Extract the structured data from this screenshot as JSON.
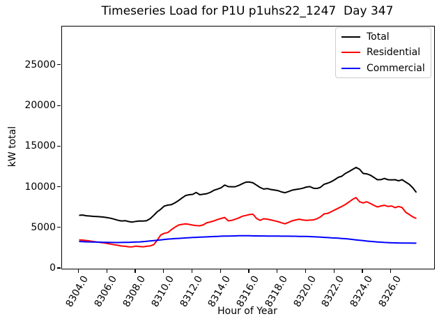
{
  "chart_data": {
    "type": "line",
    "title": "Timeseries Load for P1U p1uhs22_1247  Day 347",
    "xlabel": "Hour of Year",
    "ylabel": "kW total",
    "grid": false,
    "legend_position": "upper right",
    "x_start": 8304.0,
    "x_step": 0.25,
    "xlim": [
      8302.8,
      8329.0
    ],
    "ylim": [
      0,
      29800
    ],
    "xticks": {
      "values": [
        8304,
        8306,
        8308,
        8310,
        8312,
        8314,
        8316,
        8318,
        8320,
        8322,
        8324,
        8326
      ],
      "labels": [
        "8304.0",
        "8306.0",
        "8308.0",
        "8310.0",
        "8312.0",
        "8314.0",
        "8316.0",
        "8318.0",
        "8320.0",
        "8322.0",
        "8324.0",
        "8326.0"
      ]
    },
    "yticks": {
      "values": [
        0,
        5000,
        10000,
        15000,
        20000,
        25000
      ],
      "labels": [
        "0",
        "5000",
        "10000",
        "15000",
        "20000",
        "25000"
      ]
    },
    "series": [
      {
        "name": "Total",
        "color": "#000000",
        "values": [
          6570,
          6600,
          6520,
          6480,
          6440,
          6420,
          6390,
          6350,
          6280,
          6200,
          6080,
          5950,
          5870,
          5910,
          5800,
          5740,
          5820,
          5870,
          5860,
          5900,
          6150,
          6550,
          7000,
          7320,
          7700,
          7820,
          7880,
          8100,
          8380,
          8700,
          9000,
          9100,
          9150,
          9380,
          9100,
          9160,
          9230,
          9400,
          9650,
          9800,
          9950,
          10300,
          10100,
          10080,
          10090,
          10250,
          10460,
          10650,
          10670,
          10560,
          10280,
          10000,
          9800,
          9860,
          9750,
          9680,
          9610,
          9450,
          9350,
          9500,
          9660,
          9750,
          9810,
          9900,
          10050,
          10100,
          9900,
          9880,
          10010,
          10380,
          10520,
          10700,
          10950,
          11240,
          11380,
          11720,
          11950,
          12200,
          12465,
          12240,
          11720,
          11670,
          11520,
          11240,
          10950,
          10960,
          11100,
          10950,
          10930,
          10950,
          10810,
          10950,
          10660,
          10380,
          9950,
          9380
        ]
      },
      {
        "name": "Residential",
        "color": "#ff0000",
        "values": [
          3550,
          3520,
          3470,
          3420,
          3350,
          3280,
          3230,
          3180,
          3100,
          3020,
          2940,
          2880,
          2790,
          2760,
          2700,
          2690,
          2770,
          2730,
          2700,
          2760,
          2800,
          2950,
          3500,
          4150,
          4350,
          4450,
          4800,
          5100,
          5370,
          5450,
          5520,
          5450,
          5370,
          5300,
          5280,
          5400,
          5660,
          5750,
          5890,
          6050,
          6180,
          6300,
          5890,
          5950,
          6090,
          6250,
          6460,
          6550,
          6660,
          6700,
          6180,
          5950,
          6150,
          6100,
          6005,
          5900,
          5800,
          5650,
          5520,
          5700,
          5890,
          6000,
          6090,
          6000,
          5945,
          5980,
          6005,
          6150,
          6375,
          6745,
          6805,
          7000,
          7230,
          7450,
          7660,
          7900,
          8200,
          8520,
          8750,
          8240,
          8090,
          8240,
          8030,
          7805,
          7600,
          7720,
          7805,
          7660,
          7720,
          7515,
          7660,
          7515,
          6950,
          6660,
          6375,
          6180
        ]
      },
      {
        "name": "Commercial",
        "color": "#0000ff",
        "values": [
          3350,
          3330,
          3310,
          3300,
          3280,
          3270,
          3260,
          3250,
          3240,
          3230,
          3220,
          3220,
          3230,
          3240,
          3250,
          3260,
          3280,
          3300,
          3330,
          3370,
          3410,
          3450,
          3500,
          3550,
          3600,
          3640,
          3670,
          3700,
          3730,
          3760,
          3790,
          3810,
          3840,
          3860,
          3880,
          3900,
          3920,
          3940,
          3960,
          3980,
          4000,
          4010,
          4020,
          4030,
          4040,
          4050,
          4050,
          4050,
          4050,
          4040,
          4040,
          4030,
          4030,
          4020,
          4020,
          4010,
          4010,
          4000,
          4000,
          4000,
          3990,
          3990,
          3980,
          3980,
          3970,
          3950,
          3930,
          3910,
          3890,
          3860,
          3830,
          3800,
          3780,
          3750,
          3720,
          3690,
          3650,
          3600,
          3550,
          3500,
          3450,
          3400,
          3360,
          3320,
          3290,
          3260,
          3230,
          3210,
          3190,
          3180,
          3170,
          3160,
          3150,
          3150,
          3140,
          3140
        ]
      }
    ]
  },
  "legend": {
    "items": [
      {
        "label": "Total",
        "color": "#000000"
      },
      {
        "label": "Residential",
        "color": "#ff0000"
      },
      {
        "label": "Commercial",
        "color": "#0000ff"
      }
    ]
  }
}
